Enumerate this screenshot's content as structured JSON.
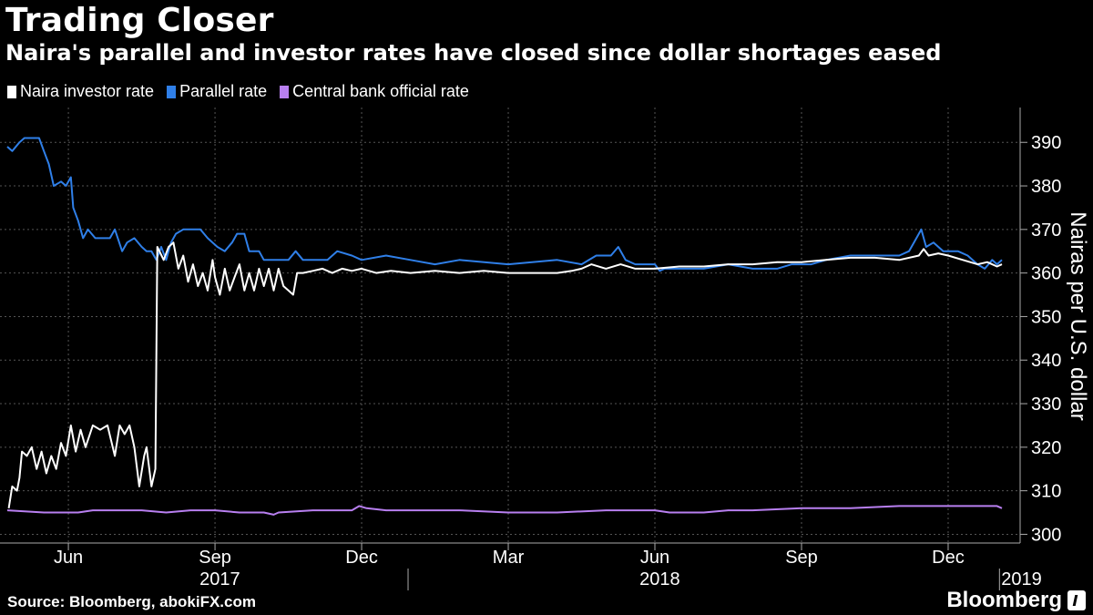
{
  "chart_data": {
    "type": "line",
    "title": "Trading Closer",
    "subtitle": "Naira's parallel and investor rates have closed since dollar shortages eased",
    "ylabel": "Nairas per U.S. dollar",
    "ylim": [
      298,
      398
    ],
    "yticks": [
      300,
      310,
      320,
      330,
      340,
      350,
      360,
      370,
      380,
      390
    ],
    "x_range_month_index": [
      3.75,
      24.1
    ],
    "month_ticks": [
      {
        "label": "Jun",
        "m": 5
      },
      {
        "label": "Sep",
        "m": 8
      },
      {
        "label": "Dec",
        "m": 11
      },
      {
        "label": "Mar",
        "m": 14
      },
      {
        "label": "Jun",
        "m": 17
      },
      {
        "label": "Sep",
        "m": 20
      },
      {
        "label": "Dec",
        "m": 23
      }
    ],
    "year_labels": [
      {
        "label": "2017",
        "m": 8.1
      },
      {
        "label": "2018",
        "m": 17.1
      },
      {
        "label": "2019",
        "m": 24.5
      }
    ],
    "year_dividers": [
      11.95,
      24.05
    ],
    "grid": true,
    "legend_position": "top-left",
    "series": [
      {
        "name": "Naira investor rate",
        "color": "#ffffff",
        "points": [
          [
            3.78,
            306
          ],
          [
            3.85,
            311
          ],
          [
            3.95,
            310
          ],
          [
            4.0,
            313
          ],
          [
            4.05,
            319
          ],
          [
            4.15,
            318
          ],
          [
            4.25,
            320
          ],
          [
            4.35,
            315
          ],
          [
            4.45,
            319
          ],
          [
            4.55,
            314
          ],
          [
            4.65,
            318
          ],
          [
            4.75,
            315
          ],
          [
            4.85,
            321
          ],
          [
            4.95,
            318
          ],
          [
            5.05,
            325
          ],
          [
            5.15,
            319
          ],
          [
            5.25,
            324
          ],
          [
            5.35,
            320
          ],
          [
            5.5,
            325
          ],
          [
            5.65,
            324
          ],
          [
            5.8,
            325
          ],
          [
            5.95,
            318
          ],
          [
            6.05,
            325
          ],
          [
            6.15,
            323
          ],
          [
            6.25,
            325
          ],
          [
            6.35,
            320
          ],
          [
            6.45,
            311
          ],
          [
            6.55,
            318
          ],
          [
            6.6,
            320
          ],
          [
            6.7,
            311
          ],
          [
            6.78,
            315
          ],
          [
            6.82,
            366
          ],
          [
            6.95,
            363
          ],
          [
            7.05,
            366
          ],
          [
            7.15,
            367
          ],
          [
            7.25,
            361
          ],
          [
            7.35,
            364
          ],
          [
            7.45,
            358
          ],
          [
            7.55,
            362
          ],
          [
            7.65,
            357
          ],
          [
            7.75,
            360
          ],
          [
            7.85,
            356
          ],
          [
            7.95,
            363
          ],
          [
            8.0,
            359
          ],
          [
            8.1,
            355
          ],
          [
            8.2,
            361
          ],
          [
            8.3,
            356
          ],
          [
            8.4,
            359
          ],
          [
            8.5,
            362
          ],
          [
            8.6,
            356
          ],
          [
            8.7,
            360
          ],
          [
            8.8,
            356
          ],
          [
            8.9,
            361
          ],
          [
            9.0,
            357
          ],
          [
            9.1,
            361
          ],
          [
            9.2,
            356
          ],
          [
            9.3,
            361
          ],
          [
            9.4,
            357
          ],
          [
            9.5,
            356
          ],
          [
            9.6,
            355
          ],
          [
            9.68,
            360
          ],
          [
            9.8,
            360
          ],
          [
            10.0,
            360.5
          ],
          [
            10.2,
            361
          ],
          [
            10.4,
            360
          ],
          [
            10.6,
            361
          ],
          [
            10.8,
            360.5
          ],
          [
            11.0,
            361
          ],
          [
            11.3,
            360
          ],
          [
            11.6,
            360.5
          ],
          [
            12.0,
            360
          ],
          [
            12.5,
            360.5
          ],
          [
            13.0,
            360
          ],
          [
            13.5,
            360.5
          ],
          [
            14.0,
            360
          ],
          [
            14.5,
            360
          ],
          [
            15.0,
            360
          ],
          [
            15.3,
            360.5
          ],
          [
            15.5,
            361
          ],
          [
            15.7,
            362
          ],
          [
            16.0,
            361
          ],
          [
            16.3,
            362
          ],
          [
            16.6,
            361
          ],
          [
            17.0,
            361
          ],
          [
            17.5,
            361.5
          ],
          [
            18.0,
            361.5
          ],
          [
            18.5,
            362
          ],
          [
            19.0,
            362
          ],
          [
            19.5,
            362.5
          ],
          [
            20.0,
            362.5
          ],
          [
            20.5,
            363
          ],
          [
            21.0,
            363.5
          ],
          [
            21.5,
            363.5
          ],
          [
            22.0,
            363
          ],
          [
            22.4,
            364
          ],
          [
            22.5,
            365.5
          ],
          [
            22.6,
            364
          ],
          [
            22.8,
            364.5
          ],
          [
            23.0,
            364
          ],
          [
            23.3,
            363
          ],
          [
            23.6,
            362
          ],
          [
            23.8,
            362.5
          ],
          [
            24.0,
            361.5
          ],
          [
            24.1,
            362
          ]
        ]
      },
      {
        "name": "Parallel rate",
        "color": "#2f7fe8",
        "points": [
          [
            3.75,
            389
          ],
          [
            3.85,
            388
          ],
          [
            4.0,
            390
          ],
          [
            4.1,
            391
          ],
          [
            4.4,
            391
          ],
          [
            4.5,
            388
          ],
          [
            4.6,
            385
          ],
          [
            4.7,
            380
          ],
          [
            4.85,
            381
          ],
          [
            4.95,
            380
          ],
          [
            5.05,
            382
          ],
          [
            5.1,
            375
          ],
          [
            5.2,
            372
          ],
          [
            5.3,
            368
          ],
          [
            5.4,
            370
          ],
          [
            5.55,
            368
          ],
          [
            5.7,
            368
          ],
          [
            5.85,
            368
          ],
          [
            5.95,
            370
          ],
          [
            6.1,
            365
          ],
          [
            6.2,
            367
          ],
          [
            6.35,
            368
          ],
          [
            6.5,
            366
          ],
          [
            6.6,
            365
          ],
          [
            6.7,
            365
          ],
          [
            6.8,
            363
          ],
          [
            6.9,
            366
          ],
          [
            7.0,
            363
          ],
          [
            7.1,
            367
          ],
          [
            7.2,
            369
          ],
          [
            7.35,
            370
          ],
          [
            7.7,
            370
          ],
          [
            7.85,
            368
          ],
          [
            8.05,
            366
          ],
          [
            8.2,
            365
          ],
          [
            8.35,
            367
          ],
          [
            8.45,
            369
          ],
          [
            8.6,
            369
          ],
          [
            8.7,
            365
          ],
          [
            8.9,
            365
          ],
          [
            9.0,
            363
          ],
          [
            9.5,
            363
          ],
          [
            9.65,
            365
          ],
          [
            9.8,
            363
          ],
          [
            10.3,
            363
          ],
          [
            10.5,
            365
          ],
          [
            10.8,
            364
          ],
          [
            11.0,
            363
          ],
          [
            11.5,
            364
          ],
          [
            12.0,
            363
          ],
          [
            12.5,
            362
          ],
          [
            13.0,
            363
          ],
          [
            14.0,
            362
          ],
          [
            15.0,
            363
          ],
          [
            15.5,
            362
          ],
          [
            15.8,
            364
          ],
          [
            16.1,
            364
          ],
          [
            16.25,
            366
          ],
          [
            16.4,
            363
          ],
          [
            16.6,
            362
          ],
          [
            17.0,
            362
          ],
          [
            17.1,
            360.5
          ],
          [
            17.2,
            361
          ],
          [
            18.0,
            361
          ],
          [
            18.5,
            362
          ],
          [
            19.0,
            361
          ],
          [
            19.5,
            361
          ],
          [
            19.8,
            362
          ],
          [
            20.2,
            362
          ],
          [
            20.5,
            363
          ],
          [
            21.0,
            364
          ],
          [
            21.6,
            364
          ],
          [
            22.0,
            364
          ],
          [
            22.2,
            365
          ],
          [
            22.3,
            367
          ],
          [
            22.45,
            370
          ],
          [
            22.55,
            366
          ],
          [
            22.7,
            367
          ],
          [
            22.9,
            365
          ],
          [
            23.2,
            365
          ],
          [
            23.4,
            364
          ],
          [
            23.6,
            362
          ],
          [
            23.75,
            361
          ],
          [
            23.9,
            363
          ],
          [
            24.0,
            362
          ],
          [
            24.1,
            363
          ]
        ]
      },
      {
        "name": "Central bank official rate",
        "color": "#b87ff0",
        "points": [
          [
            3.75,
            305.5
          ],
          [
            4.5,
            305
          ],
          [
            5.2,
            305
          ],
          [
            5.5,
            305.5
          ],
          [
            6.0,
            305.5
          ],
          [
            6.5,
            305.5
          ],
          [
            7.0,
            305
          ],
          [
            7.5,
            305.5
          ],
          [
            8.0,
            305.5
          ],
          [
            8.5,
            305
          ],
          [
            9.0,
            305
          ],
          [
            9.2,
            304.5
          ],
          [
            9.3,
            305
          ],
          [
            10.0,
            305.5
          ],
          [
            10.8,
            305.5
          ],
          [
            10.95,
            306.5
          ],
          [
            11.1,
            306
          ],
          [
            11.5,
            305.5
          ],
          [
            12.0,
            305.5
          ],
          [
            13.0,
            305.5
          ],
          [
            14.0,
            305
          ],
          [
            15.0,
            305
          ],
          [
            16.0,
            305.5
          ],
          [
            17.0,
            305.5
          ],
          [
            17.3,
            305
          ],
          [
            18.0,
            305
          ],
          [
            18.5,
            305.5
          ],
          [
            19.0,
            305.5
          ],
          [
            20.0,
            306
          ],
          [
            21.0,
            306
          ],
          [
            22.0,
            306.5
          ],
          [
            23.0,
            306.5
          ],
          [
            23.5,
            306.5
          ],
          [
            24.0,
            306.5
          ],
          [
            24.1,
            306
          ]
        ]
      }
    ]
  },
  "footer": {
    "source": "Source: Bloomberg, abokiFX.com",
    "brand": "Bloomberg"
  }
}
